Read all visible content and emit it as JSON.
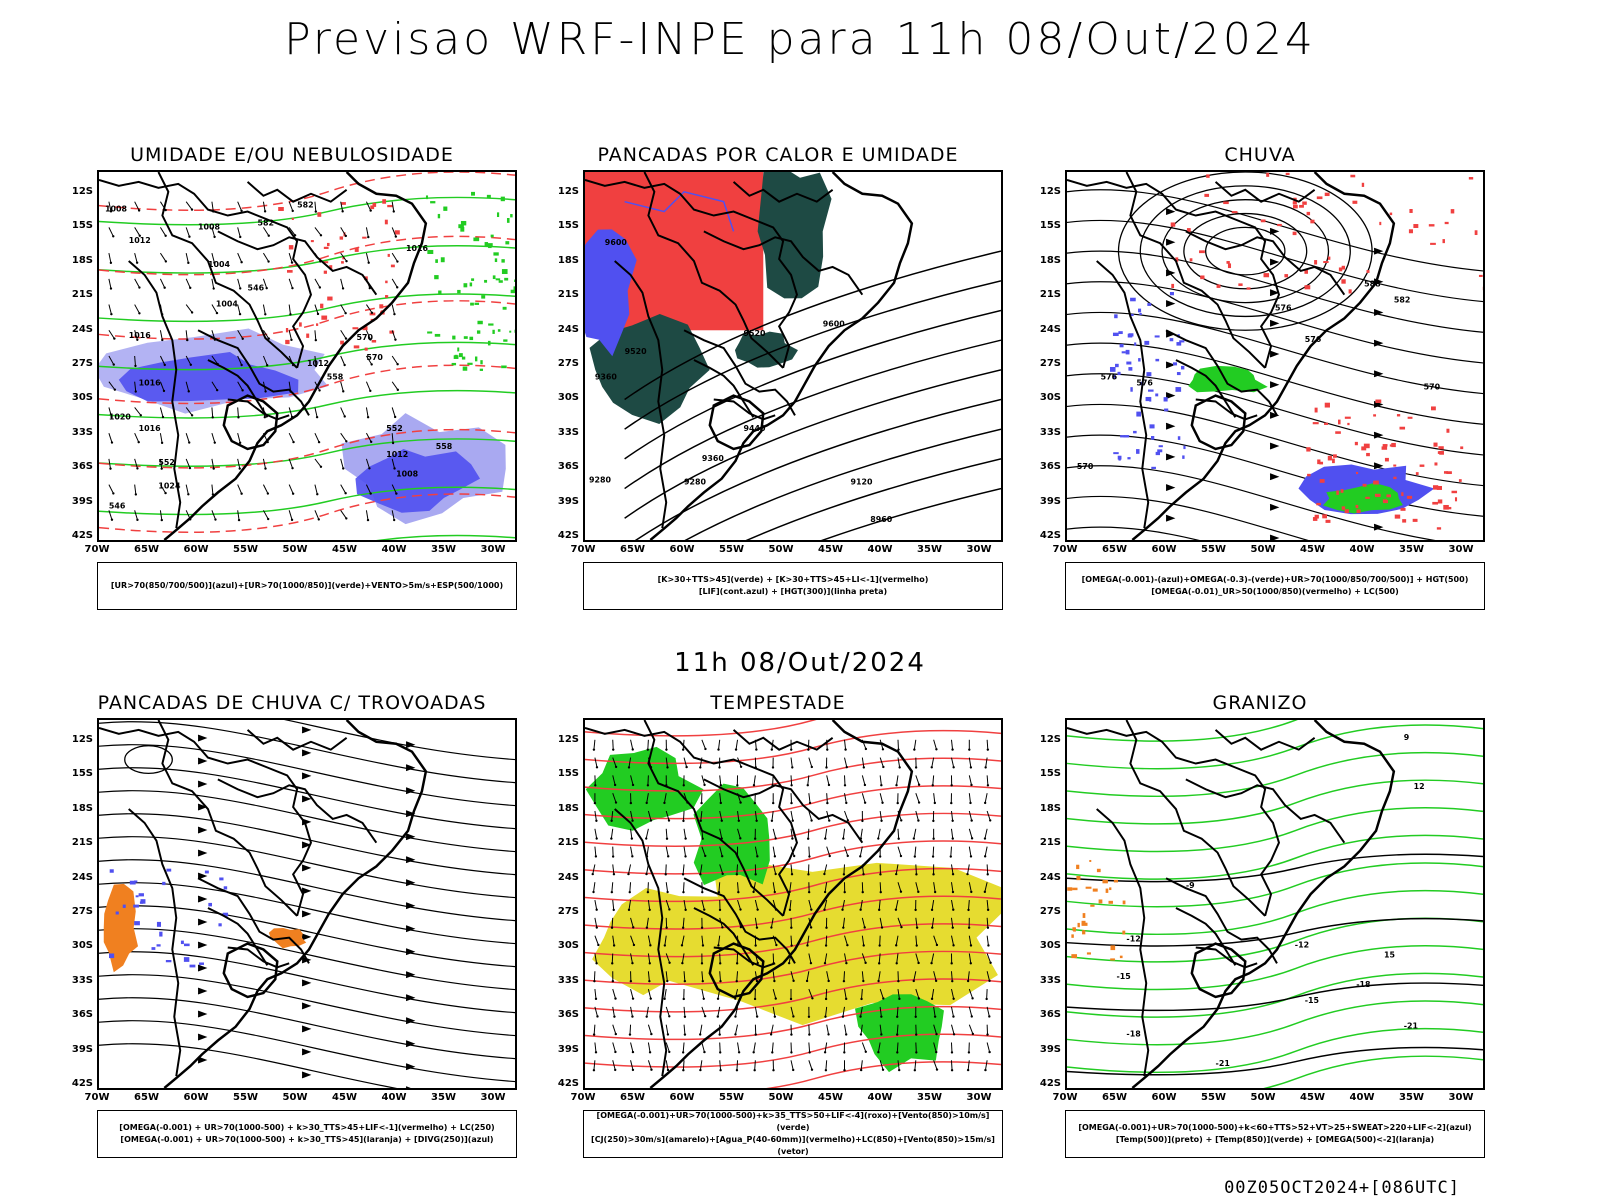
{
  "header": {
    "title": "Previsao WRF-INPE  para 11h 08/Out/2024"
  },
  "middle_title": "11h 08/Out/2024",
  "footer": "00Z05OCT2024+[086UTC]",
  "axes": {
    "lat_labels": [
      "12S",
      "15S",
      "18S",
      "21S",
      "24S",
      "27S",
      "30S",
      "33S",
      "36S",
      "39S",
      "42S"
    ],
    "lon_labels": [
      "70W",
      "65W",
      "60W",
      "55W",
      "50W",
      "45W",
      "40W",
      "35W",
      "30W"
    ]
  },
  "panels": [
    {
      "title": "UMIDADE E/OU NEBULOSIDADE",
      "legend": [
        "[UR>70(850/700/500)](azul)+[UR>70(1000/850)](verde)+VENTO>5m/s+ESP(500/1000)"
      ]
    },
    {
      "title": "PANCADAS POR CALOR E UMIDADE",
      "legend": [
        "[K>30+TTS>45](verde) + [K>30+TTS>45+LI<-1](vermelho)",
        "[LIF](cont.azul) + [HGT(300)](linha preta)"
      ]
    },
    {
      "title": "CHUVA",
      "legend": [
        "[OMEGA(-0.001)-(azul)+OMEGA(-0.3)-(verde)+UR>70(1000/850/700/500)] + HGT(500)",
        "[OMEGA(-0.01)_UR>50(1000/850)(vermelho) + LC(500)"
      ]
    },
    {
      "title": "PANCADAS DE CHUVA C/ TROVOADAS",
      "legend": [
        "[OMEGA(-0.001) + UR>70(1000-500) + k>30_TTS>45+LIF<-1](vermelho) + LC(250)",
        "[OMEGA(-0.001) + UR>70(1000-500) + k>30_TTS>45](laranja) + [DIVG(250)](azul)"
      ]
    },
    {
      "title": "TEMPESTADE",
      "legend": [
        "[OMEGA(-0.001)+UR>70(1000-500)+k>35_TTS>50+LIF<-4](roxo)+[Vento(850)>10m/s](verde)",
        "[CJ(250)>30m/s](amarelo)+[Agua_P(40-60mm)](vermelho)+LC(850)+[Vento(850)>15m/s](vetor)"
      ]
    },
    {
      "title": "GRANIZO",
      "legend": [
        "[OMEGA(-0.001)+UR>70(1000-500)+k<60+TTS>52+VT>25+SWEAT>220+LIF<-2](azul)",
        "[Temp(500)](preto) + [Temp(850)](verde) + [OMEGA(500)<-2](laranja)"
      ]
    }
  ],
  "contour_labels": {
    "p0": [
      "1008",
      "1008",
      "1012",
      "1016",
      "1004",
      "1004",
      "1016",
      "1012",
      "1020",
      "1016",
      "1012",
      "1008",
      "1016",
      "1024",
      "582",
      "582",
      "570",
      "570",
      "552",
      "558",
      "546",
      "552",
      "558",
      "546"
    ],
    "p1": [
      "9600",
      "9520",
      "9360",
      "9600",
      "9520",
      "9440",
      "9360",
      "9280",
      "9280",
      "9120",
      "8960"
    ],
    "p2": [
      "588",
      "582",
      "576",
      "570",
      "576",
      "570",
      "576",
      "576"
    ],
    "p5": [
      "-9",
      "-12",
      "-15",
      "-18",
      "-21",
      "-21",
      "-15",
      "-18",
      "-12",
      "9",
      "12",
      "15"
    ]
  },
  "colors": {
    "humid_blue": "#5050f0",
    "humid_blue_light": "#a0a0f0",
    "green": "#22cc22",
    "red": "#f04040",
    "dark_teal": "#1e4a44",
    "orange": "#f08020",
    "yellow": "#e6dc30",
    "coast": "#000000"
  }
}
